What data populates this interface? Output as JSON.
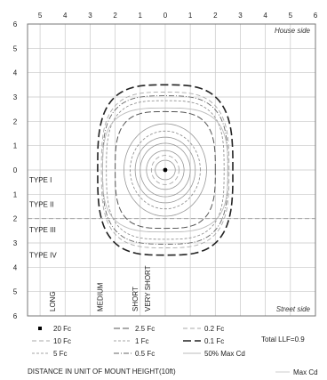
{
  "chart_data": {
    "type": "line",
    "title": "",
    "top_corner_label": "House side",
    "bottom_corner_label": "Street side",
    "x_axis": {
      "ticks": [
        "5",
        "4",
        "3",
        "2",
        "1",
        "0",
        "1",
        "2",
        "3",
        "4",
        "5",
        "6"
      ],
      "range": [
        -5.5,
        6
      ],
      "label": "DISTANCE IN UNIT OF MOUNT HEIGHT(10ft)"
    },
    "y_axis": {
      "ticks_top_to_bottom": [
        "6",
        "5",
        "4",
        "3",
        "2",
        "1",
        "0",
        "1",
        "2",
        "3",
        "4",
        "5",
        "6"
      ],
      "range": [
        -6,
        6
      ]
    },
    "grid": true,
    "fixture_position": [
      0,
      0
    ],
    "type_labels": [
      {
        "text": "TYPE I",
        "y": -0.4
      },
      {
        "text": "TYPE II",
        "y": -1.4
      },
      {
        "text": "TYPE III",
        "y": -2.45
      },
      {
        "text": "TYPE IV",
        "y": -3.5
      }
    ],
    "type_boundary_y": -2.0,
    "longitudinal_labels": [
      {
        "text": "LONG",
        "x": -4.4
      },
      {
        "text": "MEDIUM",
        "x": -2.5
      },
      {
        "text": "SHORT",
        "x": -1.1
      },
      {
        "text": "VERY SHORT",
        "x": -0.6
      }
    ],
    "series": [
      {
        "name": "20 Fc",
        "style": "point",
        "rx": 0,
        "ry": 0
      },
      {
        "name": "2.5 Fc",
        "style": "long-dash",
        "rx": 2.0,
        "ry": 2.4
      },
      {
        "name": "0.2 Fc",
        "style": "light-dash",
        "rx": 2.55,
        "ry": 3.2
      },
      {
        "name": "10 Fc",
        "style": "light-dash",
        "rx": 0.55,
        "ry": 0.6
      },
      {
        "name": "1 Fc",
        "style": "thin-dash",
        "rx": 2.35,
        "ry": 2.85
      },
      {
        "name": "0.1 Fc",
        "style": "heavy-dash",
        "rx": 2.7,
        "ry": 3.5
      },
      {
        "name": "5 Fc",
        "style": "thin-dash",
        "rx": 1.4,
        "ry": 1.6
      },
      {
        "name": "0.5 Fc",
        "style": "dash-dot",
        "rx": 2.5,
        "ry": 3.05
      },
      {
        "name": "50% Max Cd",
        "style": "light-solid",
        "rx": 2.5,
        "ry": 2.55
      },
      {
        "name": "Max Cd",
        "style": "light-solid",
        "rx": 0,
        "ry": 0
      }
    ],
    "inner_rings": [
      {
        "rx": 0.4,
        "ry": 0.4
      },
      {
        "rx": 0.75,
        "ry": 0.8
      },
      {
        "rx": 1.0,
        "ry": 1.1
      },
      {
        "rx": 1.2,
        "ry": 1.35
      },
      {
        "rx": 1.65,
        "ry": 1.9
      }
    ],
    "legend": {
      "placement": "bottom",
      "entries": [
        "20 Fc",
        "2.5 Fc",
        "0.2 Fc",
        "10 Fc",
        "1 Fc",
        "0.1 Fc",
        "5 Fc",
        "0.5 Fc",
        "50% Max Cd"
      ],
      "total_llf": "Total LLF=0.9",
      "max_cd_label": "Max Cd"
    }
  }
}
